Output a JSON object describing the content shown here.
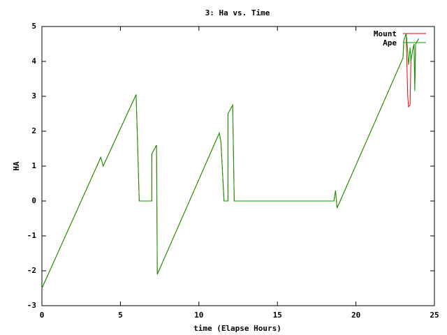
{
  "chart_data": {
    "type": "line",
    "title": "3: Ha vs. Time",
    "x_label": "time (Elapse Hours)",
    "y_label": "HA",
    "x": [
      0,
      3.75,
      3.9,
      6.0,
      6.2,
      7.0,
      7.0,
      7.3,
      7.35,
      11.3,
      11.4,
      11.6,
      11.85,
      11.85,
      12.15,
      12.25,
      18.6,
      18.7,
      18.8,
      23.0,
      23.05,
      23.2,
      23.3,
      23.35,
      23.45,
      23.5,
      23.6,
      23.7,
      23.75,
      23.8,
      24.0
    ],
    "series": [
      {
        "name": "Mount",
        "color": "#ff0000",
        "values": [
          -2.5,
          1.25,
          1.0,
          3.05,
          0,
          0,
          1.35,
          1.6,
          -2.1,
          1.95,
          1.7,
          0,
          0,
          2.5,
          2.75,
          0,
          0,
          0.3,
          -0.2,
          4.1,
          4.6,
          4.8,
          3.0,
          2.7,
          2.75,
          4.0,
          4.3,
          4.5,
          3.2,
          4.5,
          4.65
        ]
      },
      {
        "name": "Ape",
        "color": "#00a000",
        "values": [
          -2.5,
          1.25,
          1.0,
          3.05,
          0,
          0,
          1.35,
          1.6,
          -2.1,
          1.95,
          1.7,
          0,
          0,
          2.5,
          2.75,
          0,
          0,
          0.3,
          -0.2,
          4.1,
          4.6,
          4.8,
          4.3,
          3.9,
          4.4,
          4.0,
          4.3,
          4.5,
          3.15,
          4.5,
          4.65
        ]
      }
    ],
    "xlim": [
      0,
      25
    ],
    "xticks": [
      0,
      5,
      10,
      15,
      20,
      25
    ],
    "ylim": [
      -3,
      5
    ],
    "yticks": [
      -3,
      -2,
      -1,
      0,
      1,
      2,
      3,
      4,
      5
    ],
    "legend": "top-right"
  }
}
